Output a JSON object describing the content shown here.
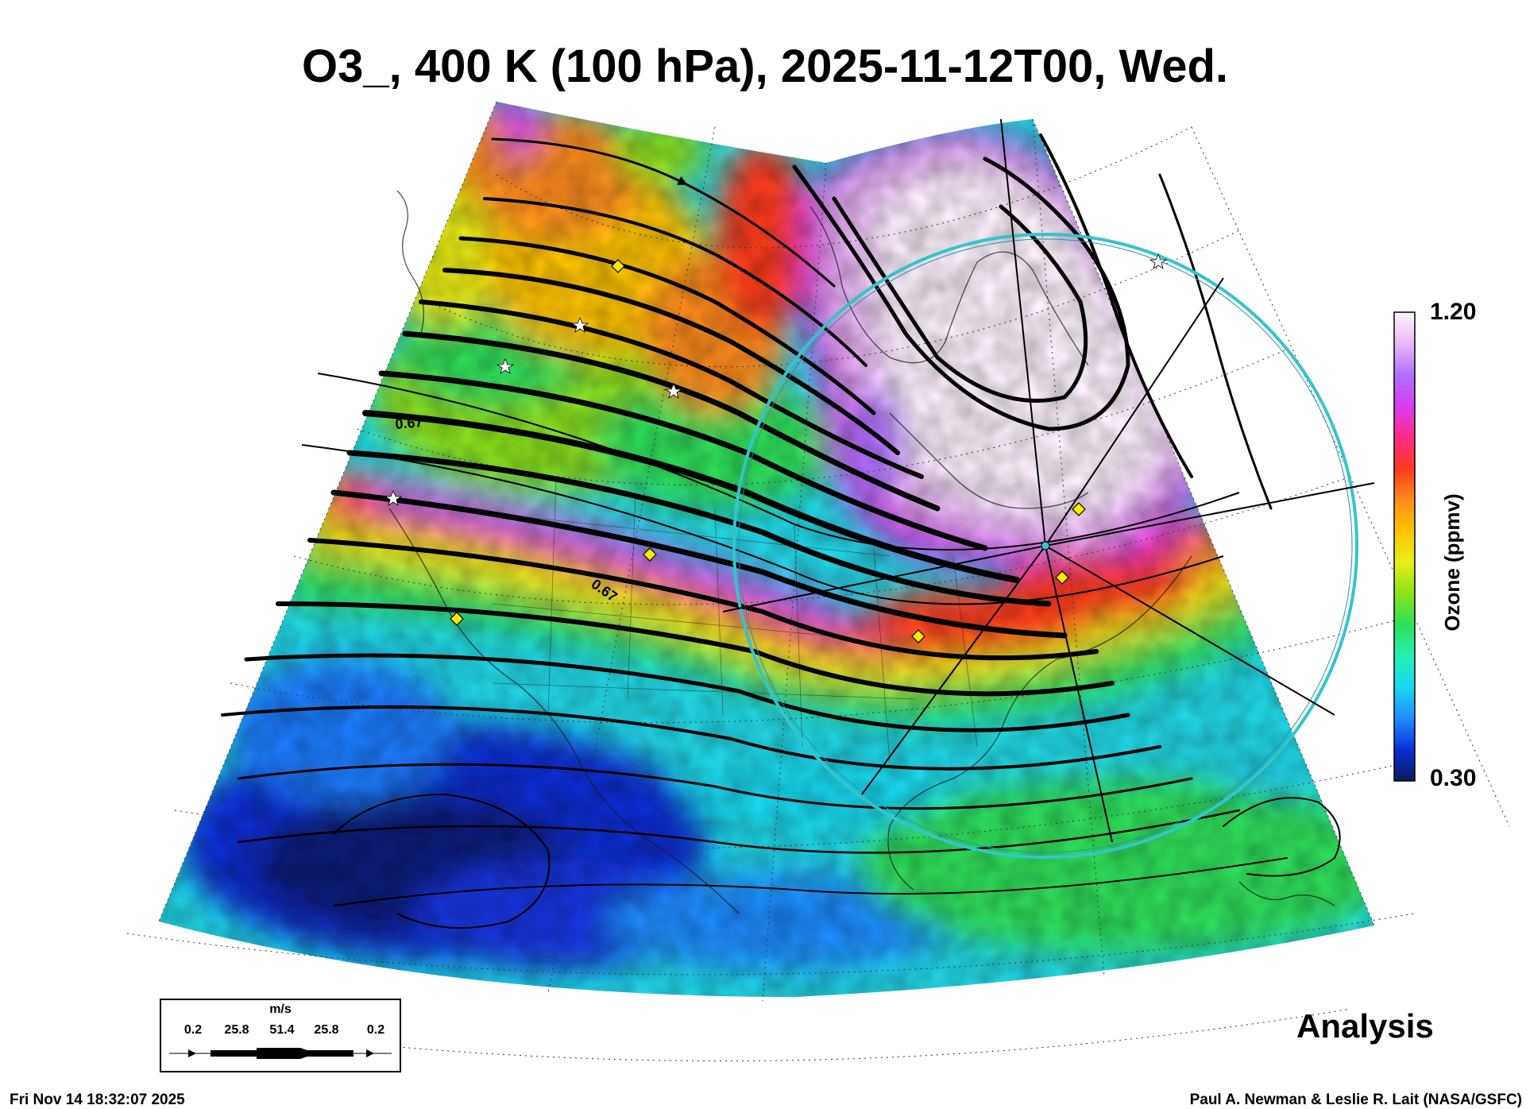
{
  "title": "O3_, 400 K (100 hPa), 2025-11-12T00, Wed.",
  "colorbar": {
    "max_label": "1.20",
    "min_label": "0.30",
    "variable_label": "Ozone (ppmv)",
    "min_value": 0.3,
    "max_value": 1.2,
    "colors": [
      "#0a1a5c",
      "#0b2fd6",
      "#1f8cff",
      "#18d8f0",
      "#24f0b0",
      "#2ee05a",
      "#8ae21a",
      "#e8ee18",
      "#ffc400",
      "#ff8c1a",
      "#ff3a1c",
      "#ff2a8a",
      "#d83cf0",
      "#b070ff",
      "#eab8f6",
      "#fff4ff"
    ]
  },
  "contour_labels": [
    "0.67",
    "0.67"
  ],
  "wind_legend": {
    "unit": "m/s",
    "ticks": [
      "0.2",
      "25.8",
      "51.4",
      "25.8",
      "0.2"
    ]
  },
  "analysis_label": "Analysis",
  "footer": {
    "timestamp": "Fri Nov 14 18:32:07 2025",
    "credit": "Paul A. Newman & Leslie R. Lait (NASA/GSFC)"
  },
  "colors": {
    "circle": "#33c4cc",
    "marker": "#ffe800",
    "streamline": "#000000"
  }
}
